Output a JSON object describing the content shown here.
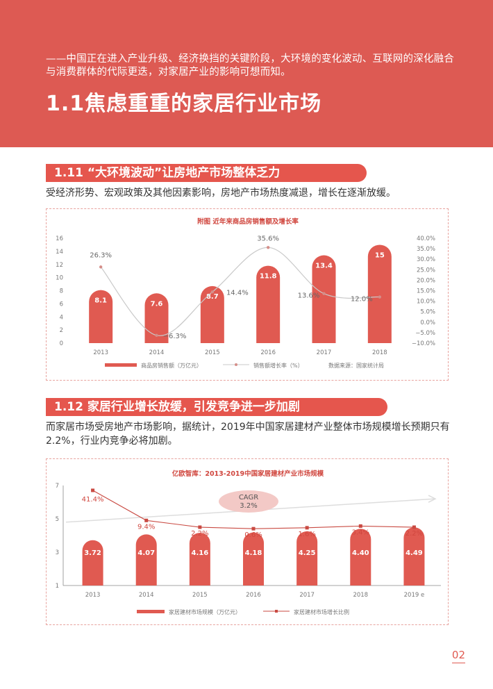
{
  "header": {
    "intro": "——中国正在进入产业升级、经济换挡的关键阶段，大环境的变化波动、互联网的深化融合与消费群体的代际更迭，对家居产业的影响可想而知。",
    "title": "1.1焦虑重重的家居行业市场",
    "bg_color": "#dd5a53"
  },
  "section1": {
    "pill": "1.11  “大环境波动”让房地产市场整体乏力",
    "desc": "受经济形势、宏观政策及其他因素影响，房地产市场热度减退，增长在逐渐放缓。"
  },
  "section2": {
    "pill": "1.12  家居行业增长放缓，引发竞争进一步加剧",
    "desc": "而家居市场受房地产市场影响，据统计，2019年中国家居建材产业整体市场规模增长预期只有2.2%，行业内竞争必将加剧。"
  },
  "page_number": "02",
  "chart_data": [
    {
      "type": "bar",
      "title": "附图 近年来商品房销售额及增长率",
      "categories": [
        "2013",
        "2014",
        "2015",
        "2016",
        "2017",
        "2018"
      ],
      "series": [
        {
          "name": "商品房销售额（万亿元）",
          "type": "bar",
          "axis": "left",
          "values": [
            8.1,
            7.6,
            8.7,
            11.8,
            13.4,
            15
          ],
          "labels": [
            "8.1",
            "7.6",
            "8.7",
            "11.8",
            "13.4",
            "15"
          ]
        },
        {
          "name": "销售额增长率（%）",
          "type": "line",
          "axis": "right",
          "values": [
            26.3,
            -6.3,
            14.4,
            35.6,
            13.6,
            12.0
          ],
          "labels": [
            "26.3%",
            "−6.3%",
            "14.4%",
            "35.6%",
            "13.6%",
            "12.0%"
          ]
        }
      ],
      "left_ticks": [
        "0",
        "2",
        "4",
        "6",
        "8",
        "10",
        "12",
        "14",
        "16"
      ],
      "right_ticks": [
        "40.0%",
        "35.0%",
        "30.0%",
        "25.0%",
        "20.0%",
        "15.0%",
        "10.0%",
        "5.0%",
        "0.0%",
        "−5.0%",
        "−10.0%"
      ],
      "ylim": [
        0,
        16
      ],
      "y2lim": [
        -10,
        40
      ],
      "source": "数据来源：国家统计局",
      "colors": {
        "bar": "#e05a51",
        "line": "#c9c9c9",
        "text": "#555555"
      }
    },
    {
      "type": "bar",
      "title": "亿欧智库：2013-2019中国家居建材产业市场规模",
      "categories": [
        "2013",
        "2014",
        "2015",
        "2016",
        "2017",
        "2018",
        "2019 e"
      ],
      "series": [
        {
          "name": "家居建材市场规模（万亿元）",
          "type": "bar",
          "axis": "left",
          "values": [
            3.72,
            4.07,
            4.16,
            4.18,
            4.25,
            4.4,
            4.49
          ],
          "labels": [
            "3.72",
            "4.07",
            "4.16",
            "4.18",
            "4.25",
            "4.40",
            "4.49"
          ]
        },
        {
          "name": "家居建材市场增长比例",
          "type": "line",
          "axis": "right",
          "values": [
            41.4,
            9.4,
            2.2,
            0.6,
            1.6,
            3.4,
            2.2
          ],
          "labels": [
            "41.4%",
            "9.4%",
            "2.2%",
            "0.6%",
            "1.6%",
            "3.4%",
            "2.2%"
          ]
        }
      ],
      "left_ticks": [
        "1",
        "3",
        "5",
        "7"
      ],
      "ylim": [
        1,
        7
      ],
      "cagr_label": "CAGR",
      "cagr_value": "3.2%",
      "colors": {
        "bar": "#e05a51",
        "line": "#c94a42",
        "text": "#555555"
      }
    }
  ]
}
